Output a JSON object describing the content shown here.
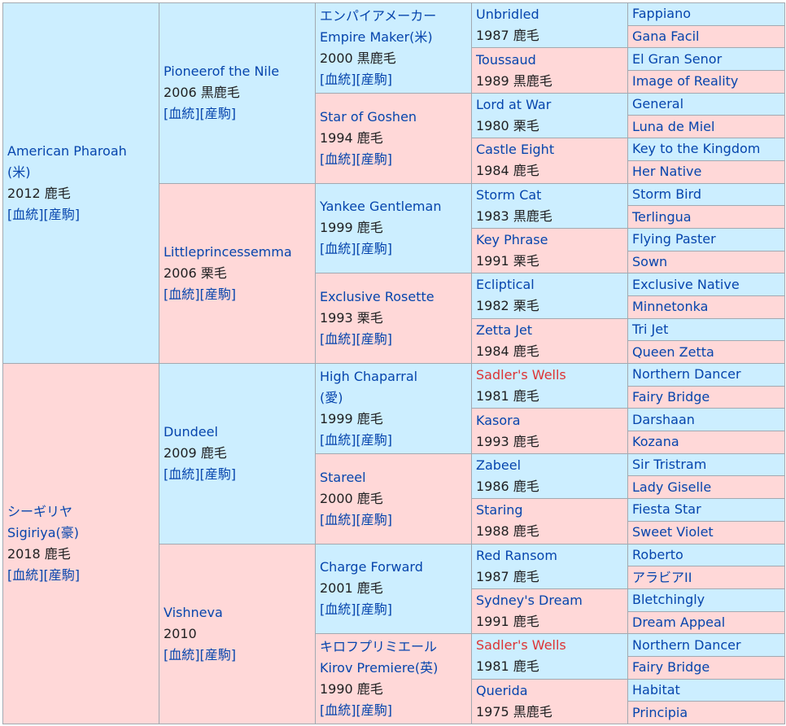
{
  "links": {
    "blood": "血統",
    "foals": "産駒"
  },
  "gen1": [
    {
      "name": "American Pharoah",
      "name2": "(米)",
      "info": "2012 鹿毛"
    },
    {
      "name": "シーギリヤ",
      "name2": "Sigiriya(豪)",
      "info": "2018 鹿毛"
    }
  ],
  "gen2": [
    {
      "name": "Pioneerof the Nile",
      "info": "2006 黒鹿毛"
    },
    {
      "name": "Littleprincessemma",
      "info": "2006 栗毛"
    },
    {
      "name": "Dundeel",
      "info": "2009 鹿毛"
    },
    {
      "name": "Vishneva",
      "info": "2010"
    }
  ],
  "gen3": [
    {
      "name": "エンパイアメーカー",
      "name2": "Empire Maker(米)",
      "info": "2000 黒鹿毛"
    },
    {
      "name": "Star of Goshen",
      "info": "1994 鹿毛"
    },
    {
      "name": "Yankee Gentleman",
      "info": "1999 鹿毛"
    },
    {
      "name": "Exclusive Rosette",
      "info": "1993 栗毛"
    },
    {
      "name": "High Chaparral",
      "name2": "(愛)",
      "info": "1999 鹿毛"
    },
    {
      "name": "Stareel",
      "info": "2000 鹿毛"
    },
    {
      "name": "Charge Forward",
      "info": "2001 鹿毛"
    },
    {
      "name": "キロフプリミエール",
      "name2": "Kirov Premiere(英)",
      "info": "1990 鹿毛"
    }
  ],
  "gen4": [
    {
      "name": "Unbridled",
      "info": "1987 鹿毛"
    },
    {
      "name": "Toussaud",
      "info": "1989 黒鹿毛"
    },
    {
      "name": "Lord at War",
      "info": "1980 栗毛"
    },
    {
      "name": "Castle Eight",
      "info": "1984 鹿毛"
    },
    {
      "name": "Storm Cat",
      "info": "1983 黒鹿毛"
    },
    {
      "name": "Key Phrase",
      "info": "1991 栗毛"
    },
    {
      "name": "Ecliptical",
      "info": "1982 栗毛"
    },
    {
      "name": "Zetta Jet",
      "info": "1984 鹿毛"
    },
    {
      "name": "Sadler's Wells",
      "info": "1981 鹿毛"
    },
    {
      "name": "Kasora",
      "info": "1993 鹿毛"
    },
    {
      "name": "Zabeel",
      "info": "1986 鹿毛"
    },
    {
      "name": "Staring",
      "info": "1988 鹿毛"
    },
    {
      "name": "Red Ransom",
      "info": "1987 鹿毛"
    },
    {
      "name": "Sydney's Dream",
      "info": "1991 鹿毛"
    },
    {
      "name": "Sadler's Wells",
      "info": "1981 鹿毛"
    },
    {
      "name": "Querida",
      "info": "1975 黒鹿毛"
    }
  ],
  "gen5": [
    "Fappiano",
    "Gana Facil",
    "El Gran Senor",
    "Image of Reality",
    "General",
    "Luna de Miel",
    "Key to the Kingdom",
    "Her Native",
    "Storm Bird",
    "Terlingua",
    "Flying Paster",
    "Sown",
    "Exclusive Native",
    "Minnetonka",
    "Tri Jet",
    "Queen Zetta",
    "Northern Dancer",
    "Fairy Bridge",
    "Darshaan",
    "Kozana",
    "Sir Tristram",
    "Lady Giselle",
    "Fiesta Star",
    "Sweet Violet",
    "Roberto",
    "アラビアII",
    "Bletchingly",
    "Dream Appeal",
    "Northern Dancer",
    "Fairy Bridge",
    "Habitat",
    "Principia"
  ],
  "colors": {
    "male_bg": "#cceeff",
    "female_bg": "#ffd8d8",
    "link": "#0645ad",
    "highlight": "#dd3333",
    "border": "#a2a9b1"
  }
}
